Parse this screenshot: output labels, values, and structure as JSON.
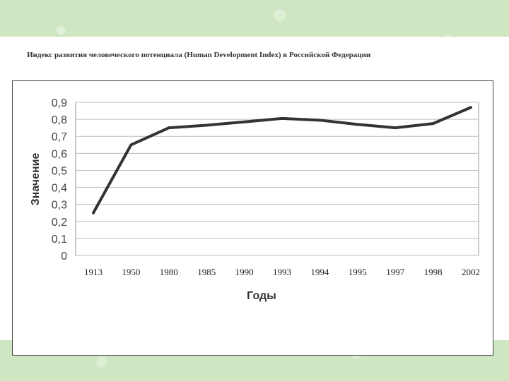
{
  "doc_title": "Индекс развития человеческого потенциала (Human Development Index) в Российской Федерации",
  "chart_data": {
    "type": "line",
    "categories": [
      "1913",
      "1950",
      "1980",
      "1985",
      "1990",
      "1993",
      "1994",
      "1995",
      "1997",
      "1998",
      "2002"
    ],
    "series": [
      {
        "values": [
          0.25,
          0.65,
          0.75,
          0.765,
          0.785,
          0.805,
          0.795,
          0.77,
          0.75,
          0.775,
          0.87
        ]
      }
    ],
    "xlabel": "Годы",
    "ylabel": "Значение",
    "ylim": [
      0,
      0.9
    ],
    "yticks": [
      "0",
      "0,1",
      "0,2",
      "0,3",
      "0,4",
      "0,5",
      "0,6",
      "0,7",
      "0,8",
      "0,9"
    ],
    "grid": true,
    "legend": "none",
    "line_color": "#333333",
    "grid_color": "#bdbdbd"
  }
}
